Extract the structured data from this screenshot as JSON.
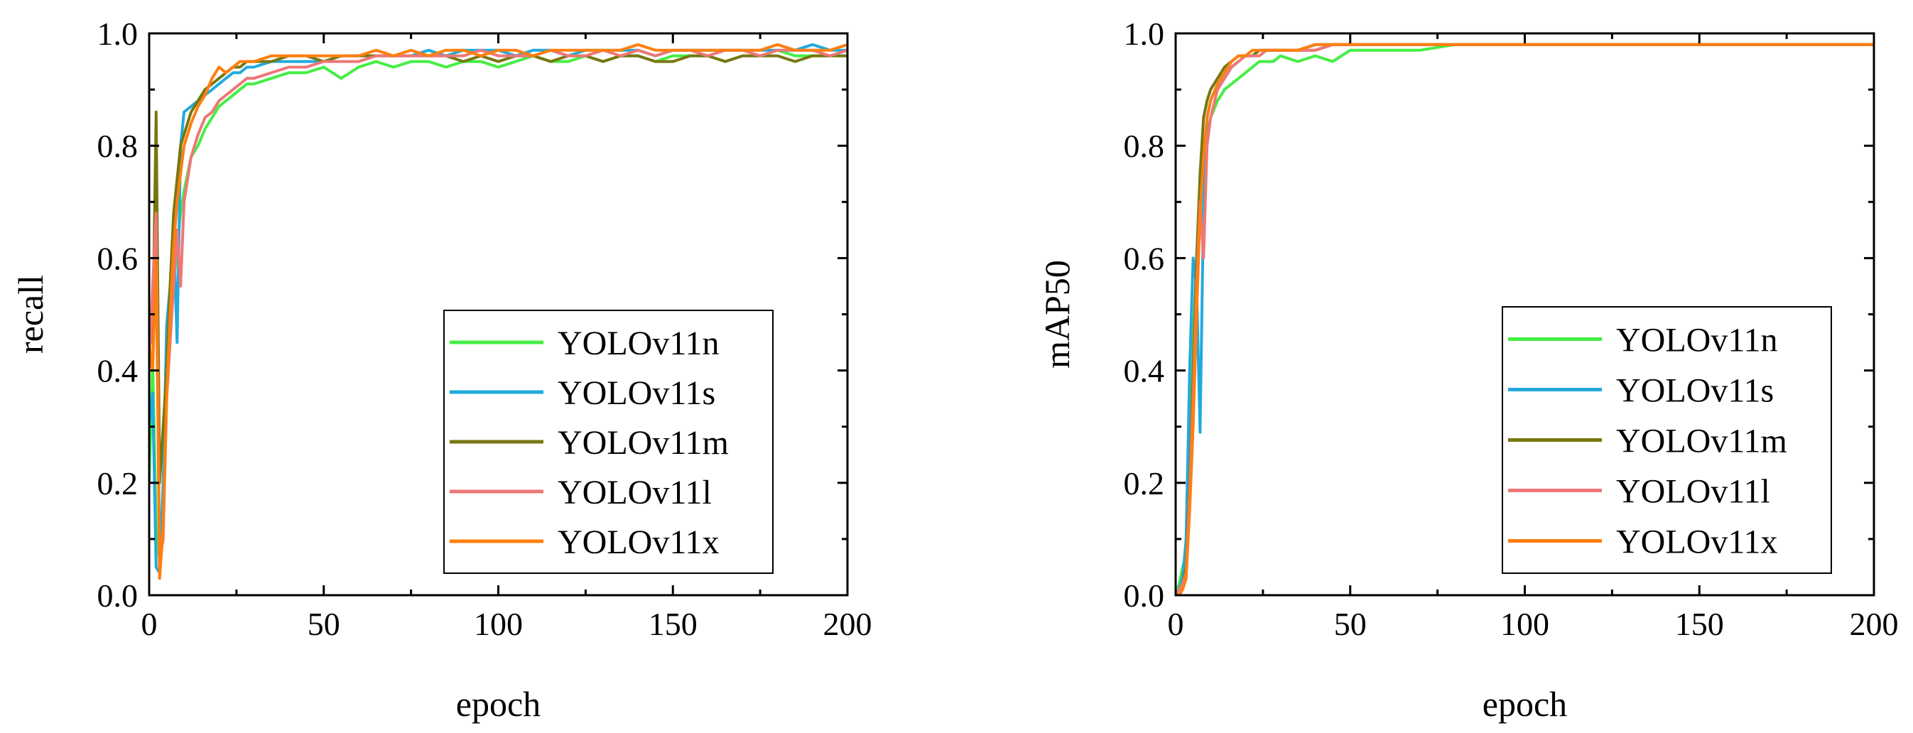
{
  "legend_labels": [
    "YOLOv11n",
    "YOLOv11s",
    "YOLOv11m",
    "YOLOv11l",
    "YOLOv11x"
  ],
  "chart_data": [
    {
      "type": "line",
      "title": "",
      "xlabel": "epoch",
      "ylabel": "recall",
      "xlim": [
        0,
        200
      ],
      "ylim": [
        0,
        1.0
      ],
      "xticks": [
        0,
        50,
        100,
        150,
        200
      ],
      "yticks": [
        0.0,
        0.2,
        0.4,
        0.6,
        0.8,
        1.0
      ],
      "ytick_labels": [
        "0.0",
        "0.2",
        "0.4",
        "0.6",
        "0.8",
        "1.0"
      ],
      "grid": false,
      "legend_position": "bottom-right",
      "series": [
        {
          "name": "YOLOv11n",
          "color": "#44ee44",
          "x": [
            0,
            1,
            2,
            3,
            4,
            5,
            6,
            7,
            8,
            9,
            10,
            12,
            14,
            16,
            18,
            20,
            22,
            24,
            26,
            28,
            30,
            35,
            40,
            45,
            50,
            55,
            60,
            65,
            70,
            75,
            80,
            85,
            90,
            95,
            100,
            105,
            110,
            115,
            120,
            125,
            130,
            135,
            140,
            145,
            150,
            155,
            160,
            165,
            170,
            175,
            180,
            185,
            190,
            195,
            200
          ],
          "y": [
            0.2,
            0.42,
            0.12,
            0.06,
            0.15,
            0.45,
            0.5,
            0.55,
            0.62,
            0.68,
            0.72,
            0.78,
            0.8,
            0.83,
            0.85,
            0.87,
            0.88,
            0.89,
            0.9,
            0.91,
            0.91,
            0.92,
            0.93,
            0.93,
            0.94,
            0.92,
            0.94,
            0.95,
            0.94,
            0.95,
            0.95,
            0.94,
            0.95,
            0.95,
            0.94,
            0.95,
            0.96,
            0.95,
            0.95,
            0.96,
            0.95,
            0.96,
            0.96,
            0.95,
            0.96,
            0.96,
            0.96,
            0.95,
            0.96,
            0.96,
            0.97,
            0.96,
            0.96,
            0.96,
            0.96
          ]
        },
        {
          "name": "YOLOv11s",
          "color": "#22aadd",
          "x": [
            0,
            1,
            2,
            3,
            4,
            5,
            6,
            7,
            8,
            9,
            10,
            12,
            14,
            16,
            18,
            20,
            22,
            24,
            26,
            28,
            30,
            35,
            40,
            45,
            50,
            55,
            60,
            65,
            70,
            75,
            80,
            85,
            90,
            95,
            100,
            105,
            110,
            115,
            120,
            125,
            130,
            135,
            140,
            145,
            150,
            155,
            160,
            165,
            170,
            175,
            180,
            185,
            190,
            195,
            200
          ],
          "y": [
            0.3,
            0.36,
            0.05,
            0.04,
            0.2,
            0.48,
            0.55,
            0.65,
            0.45,
            0.8,
            0.86,
            0.87,
            0.88,
            0.89,
            0.9,
            0.91,
            0.92,
            0.93,
            0.93,
            0.94,
            0.94,
            0.95,
            0.95,
            0.95,
            0.95,
            0.96,
            0.96,
            0.96,
            0.96,
            0.96,
            0.97,
            0.96,
            0.97,
            0.97,
            0.97,
            0.96,
            0.97,
            0.97,
            0.96,
            0.97,
            0.97,
            0.97,
            0.97,
            0.96,
            0.97,
            0.97,
            0.97,
            0.97,
            0.97,
            0.97,
            0.97,
            0.97,
            0.98,
            0.97,
            0.97
          ]
        },
        {
          "name": "YOLOv11m",
          "color": "#777711",
          "x": [
            0,
            1,
            2,
            3,
            4,
            5,
            6,
            7,
            8,
            9,
            10,
            12,
            14,
            16,
            18,
            20,
            22,
            24,
            26,
            28,
            30,
            35,
            40,
            45,
            50,
            55,
            60,
            65,
            70,
            75,
            80,
            85,
            90,
            95,
            100,
            105,
            110,
            115,
            120,
            125,
            130,
            135,
            140,
            145,
            150,
            155,
            160,
            165,
            170,
            175,
            180,
            185,
            190,
            195,
            200
          ],
          "y": [
            0.5,
            0.45,
            0.86,
            0.2,
            0.3,
            0.4,
            0.55,
            0.68,
            0.74,
            0.8,
            0.82,
            0.86,
            0.88,
            0.9,
            0.91,
            0.92,
            0.93,
            0.94,
            0.94,
            0.95,
            0.95,
            0.95,
            0.96,
            0.96,
            0.95,
            0.96,
            0.96,
            0.96,
            0.96,
            0.96,
            0.96,
            0.96,
            0.95,
            0.96,
            0.95,
            0.96,
            0.96,
            0.95,
            0.96,
            0.96,
            0.95,
            0.96,
            0.96,
            0.95,
            0.95,
            0.96,
            0.96,
            0.95,
            0.96,
            0.96,
            0.96,
            0.95,
            0.96,
            0.96,
            0.96
          ]
        },
        {
          "name": "YOLOv11l",
          "color": "#ee7777",
          "x": [
            0,
            1,
            2,
            3,
            4,
            5,
            6,
            7,
            8,
            9,
            10,
            12,
            14,
            16,
            18,
            20,
            22,
            24,
            26,
            28,
            30,
            35,
            40,
            45,
            50,
            55,
            60,
            65,
            70,
            75,
            80,
            85,
            90,
            95,
            100,
            105,
            110,
            115,
            120,
            125,
            130,
            135,
            140,
            145,
            150,
            155,
            160,
            165,
            170,
            175,
            180,
            185,
            190,
            195,
            200
          ],
          "y": [
            0.4,
            0.55,
            0.68,
            0.06,
            0.1,
            0.35,
            0.45,
            0.55,
            0.65,
            0.55,
            0.7,
            0.78,
            0.82,
            0.85,
            0.86,
            0.88,
            0.89,
            0.9,
            0.91,
            0.92,
            0.92,
            0.93,
            0.94,
            0.94,
            0.95,
            0.95,
            0.95,
            0.96,
            0.96,
            0.96,
            0.96,
            0.96,
            0.96,
            0.97,
            0.96,
            0.96,
            0.96,
            0.97,
            0.96,
            0.96,
            0.97,
            0.96,
            0.97,
            0.96,
            0.97,
            0.97,
            0.96,
            0.97,
            0.97,
            0.96,
            0.97,
            0.97,
            0.97,
            0.96,
            0.97
          ]
        },
        {
          "name": "YOLOv11x",
          "color": "#ff7f0e",
          "x": [
            0,
            1,
            2,
            3,
            4,
            5,
            6,
            7,
            8,
            9,
            10,
            12,
            14,
            16,
            18,
            20,
            22,
            24,
            26,
            28,
            30,
            35,
            40,
            45,
            50,
            55,
            60,
            65,
            70,
            75,
            80,
            85,
            90,
            95,
            100,
            105,
            110,
            115,
            120,
            125,
            130,
            135,
            140,
            145,
            150,
            155,
            160,
            165,
            170,
            175,
            180,
            185,
            190,
            195,
            200
          ],
          "y": [
            0.45,
            0.4,
            0.6,
            0.03,
            0.12,
            0.35,
            0.5,
            0.62,
            0.7,
            0.75,
            0.8,
            0.84,
            0.87,
            0.89,
            0.92,
            0.94,
            0.93,
            0.94,
            0.95,
            0.95,
            0.95,
            0.96,
            0.96,
            0.96,
            0.96,
            0.96,
            0.96,
            0.97,
            0.96,
            0.97,
            0.96,
            0.97,
            0.97,
            0.96,
            0.97,
            0.97,
            0.96,
            0.97,
            0.97,
            0.97,
            0.97,
            0.97,
            0.98,
            0.97,
            0.97,
            0.97,
            0.97,
            0.97,
            0.97,
            0.97,
            0.98,
            0.97,
            0.97,
            0.97,
            0.98
          ]
        }
      ]
    },
    {
      "type": "line",
      "title": "",
      "xlabel": "epoch",
      "ylabel": "mAP50",
      "xlim": [
        0,
        200
      ],
      "ylim": [
        0,
        1.0
      ],
      "xticks": [
        0,
        50,
        100,
        150,
        200
      ],
      "yticks": [
        0.0,
        0.2,
        0.4,
        0.6,
        0.8,
        1.0
      ],
      "ytick_labels": [
        "0.0",
        "0.2",
        "0.4",
        "0.6",
        "0.8",
        "1.0"
      ],
      "grid": false,
      "legend_position": "bottom-right",
      "series": [
        {
          "name": "YOLOv11n",
          "color": "#44ee44",
          "x": [
            0,
            1,
            2,
            3,
            4,
            5,
            6,
            7,
            8,
            9,
            10,
            12,
            14,
            16,
            18,
            20,
            22,
            24,
            26,
            28,
            30,
            35,
            40,
            45,
            50,
            60,
            70,
            80,
            90,
            100,
            110,
            120,
            130,
            140,
            150,
            160,
            170,
            180,
            190,
            200
          ],
          "y": [
            0.0,
            0.02,
            0.05,
            0.07,
            0.25,
            0.45,
            0.6,
            0.72,
            0.78,
            0.82,
            0.85,
            0.88,
            0.9,
            0.91,
            0.92,
            0.93,
            0.94,
            0.95,
            0.95,
            0.95,
            0.96,
            0.95,
            0.96,
            0.95,
            0.97,
            0.97,
            0.97,
            0.98,
            0.98,
            0.98,
            0.98,
            0.98,
            0.98,
            0.98,
            0.98,
            0.98,
            0.98,
            0.98,
            0.98,
            0.98
          ]
        },
        {
          "name": "YOLOv11s",
          "color": "#22aadd",
          "x": [
            0,
            1,
            2,
            3,
            4,
            5,
            6,
            7,
            8,
            9,
            10,
            12,
            14,
            16,
            18,
            20,
            22,
            24,
            26,
            28,
            30,
            35,
            40,
            45,
            50,
            60,
            70,
            80,
            90,
            100,
            110,
            120,
            130,
            140,
            150,
            160,
            170,
            180,
            190,
            200
          ],
          "y": [
            0.0,
            0.01,
            0.03,
            0.1,
            0.4,
            0.6,
            0.55,
            0.29,
            0.7,
            0.85,
            0.88,
            0.91,
            0.92,
            0.94,
            0.95,
            0.96,
            0.96,
            0.97,
            0.97,
            0.97,
            0.97,
            0.97,
            0.98,
            0.98,
            0.98,
            0.98,
            0.98,
            0.98,
            0.98,
            0.98,
            0.98,
            0.98,
            0.98,
            0.98,
            0.98,
            0.98,
            0.98,
            0.98,
            0.98,
            0.98
          ]
        },
        {
          "name": "YOLOv11m",
          "color": "#777711",
          "x": [
            0,
            1,
            2,
            3,
            4,
            5,
            6,
            7,
            8,
            9,
            10,
            12,
            14,
            16,
            18,
            20,
            22,
            24,
            26,
            28,
            30,
            35,
            40,
            45,
            50,
            60,
            70,
            80,
            90,
            100,
            110,
            120,
            130,
            140,
            150,
            160,
            170,
            180,
            190,
            200
          ],
          "y": [
            0.0,
            0.01,
            0.02,
            0.05,
            0.2,
            0.4,
            0.6,
            0.75,
            0.85,
            0.88,
            0.9,
            0.92,
            0.94,
            0.95,
            0.96,
            0.96,
            0.96,
            0.97,
            0.97,
            0.97,
            0.97,
            0.97,
            0.97,
            0.98,
            0.98,
            0.98,
            0.98,
            0.98,
            0.98,
            0.98,
            0.98,
            0.98,
            0.98,
            0.98,
            0.98,
            0.98,
            0.98,
            0.98,
            0.98,
            0.98
          ]
        },
        {
          "name": "YOLOv11l",
          "color": "#ee7777",
          "x": [
            0,
            1,
            2,
            3,
            4,
            5,
            6,
            7,
            8,
            9,
            10,
            12,
            14,
            16,
            18,
            20,
            22,
            24,
            26,
            28,
            30,
            35,
            40,
            45,
            50,
            60,
            70,
            80,
            90,
            100,
            110,
            120,
            130,
            140,
            150,
            160,
            170,
            180,
            190,
            200
          ],
          "y": [
            0.0,
            0.01,
            0.02,
            0.04,
            0.18,
            0.35,
            0.55,
            0.7,
            0.6,
            0.8,
            0.85,
            0.9,
            0.92,
            0.94,
            0.95,
            0.96,
            0.96,
            0.96,
            0.97,
            0.97,
            0.97,
            0.97,
            0.97,
            0.98,
            0.98,
            0.98,
            0.98,
            0.98,
            0.98,
            0.98,
            0.98,
            0.98,
            0.98,
            0.98,
            0.98,
            0.98,
            0.98,
            0.98,
            0.98,
            0.98
          ]
        },
        {
          "name": "YOLOv11x",
          "color": "#ff7f0e",
          "x": [
            0,
            1,
            2,
            3,
            4,
            5,
            6,
            7,
            8,
            9,
            10,
            12,
            14,
            16,
            18,
            20,
            22,
            24,
            26,
            28,
            30,
            35,
            40,
            45,
            50,
            60,
            70,
            80,
            90,
            100,
            110,
            120,
            130,
            140,
            150,
            160,
            170,
            180,
            190,
            200
          ],
          "y": [
            0.0,
            0.0,
            0.01,
            0.03,
            0.15,
            0.3,
            0.5,
            0.68,
            0.78,
            0.85,
            0.88,
            0.91,
            0.93,
            0.95,
            0.96,
            0.96,
            0.97,
            0.97,
            0.97,
            0.97,
            0.97,
            0.97,
            0.98,
            0.98,
            0.98,
            0.98,
            0.98,
            0.98,
            0.98,
            0.98,
            0.98,
            0.98,
            0.98,
            0.98,
            0.98,
            0.98,
            0.98,
            0.98,
            0.98,
            0.98
          ]
        }
      ]
    }
  ]
}
